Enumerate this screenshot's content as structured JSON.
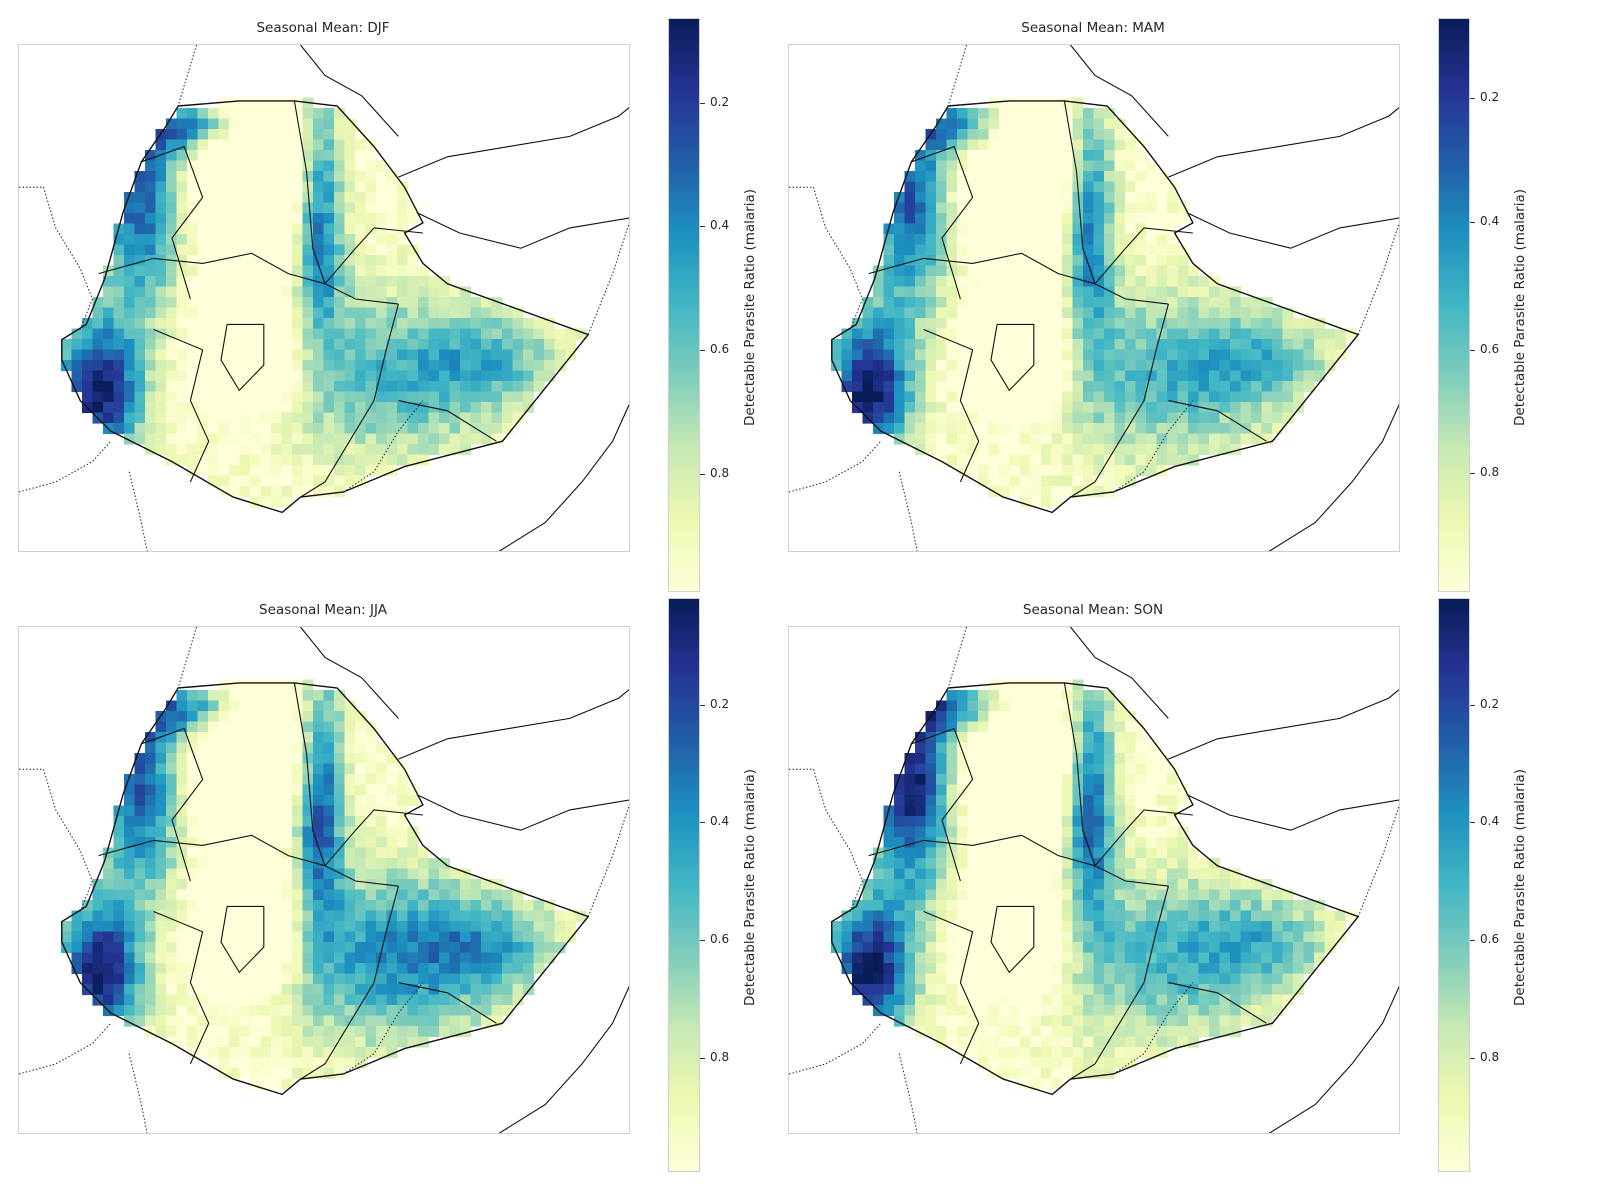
{
  "figure": {
    "colormap": [
      "#ffffd9",
      "#edf8b1",
      "#c7e9b4",
      "#7fcdbb",
      "#41b6c4",
      "#1d91c0",
      "#225ea8",
      "#253494",
      "#081d58"
    ],
    "colorbar_label": "Detectable Parasite Ratio (malaria)",
    "colorbar_ticks": [
      "0.2",
      "0.4",
      "0.6",
      "0.8"
    ]
  },
  "chart_data": [
    {
      "type": "heatmap",
      "title": "Seasonal Mean: DJF",
      "zlim": [
        0.02,
        0.93
      ],
      "colorbar_label": "Detectable Parasite Ratio (malaria)",
      "colorbar_ticks": [
        0.2,
        0.4,
        0.6,
        0.8
      ]
    },
    {
      "type": "heatmap",
      "title": "Seasonal Mean: MAM",
      "zlim": [
        0.02,
        0.92
      ],
      "colorbar_label": "Detectable Parasite Ratio (malaria)",
      "colorbar_ticks": [
        0.2,
        0.4,
        0.6,
        0.8
      ]
    },
    {
      "type": "heatmap",
      "title": "Seasonal Mean: JJA",
      "zlim": [
        0.02,
        0.97
      ],
      "colorbar_label": "Detectable Parasite Ratio (malaria)",
      "colorbar_ticks": [
        0.2,
        0.4,
        0.6,
        0.8
      ]
    },
    {
      "type": "heatmap",
      "title": "Seasonal Mean: SON",
      "zlim": [
        0.02,
        0.97
      ],
      "colorbar_label": "Detectable Parasite Ratio (malaria)",
      "colorbar_ticks": [
        0.2,
        0.4,
        0.6,
        0.8
      ]
    }
  ]
}
